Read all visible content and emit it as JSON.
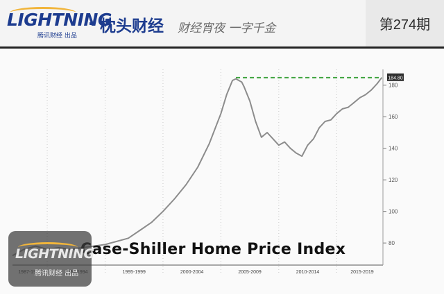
{
  "header": {
    "brand_logo": "LIGHTNING",
    "brand_sub": "腾讯财经 出品",
    "brand_dot": "·",
    "brand_cn": "枕头财经",
    "slogan": "财经宵夜 一字千金",
    "issue": "第274期"
  },
  "watermark": {
    "logo": "LIGHTNING",
    "sub": "腾讯财经 出品"
  },
  "colors": {
    "brand_blue": "#1d3c8f",
    "accent_yellow": "#f1b53b",
    "line": "#8c8c8c",
    "dashed_level": "#3ea33e"
  },
  "chart_data": {
    "type": "line",
    "title": "Case-Shiller Home Price Index",
    "xlabel": "",
    "ylabel": "",
    "x_tick_labels": [
      "1987-1989",
      "1990-1994",
      "1995-1999",
      "2000-2004",
      "2005-2009",
      "2010-2014",
      "2015-2019"
    ],
    "y_ticks": [
      80,
      100,
      120,
      140,
      160,
      180
    ],
    "ylim": [
      66,
      190
    ],
    "xlim": [
      1987,
      2019
    ],
    "grid": "vertical dotted",
    "latest_label": "184.80",
    "dashed_level_y": 184.8,
    "dashed_level_x_range": [
      2006.3,
      2018.9
    ],
    "series": [
      {
        "x": [
          1987,
          1988,
          1989,
          1990,
          1991,
          1992,
          1993,
          1994,
          1995,
          1996,
          1997,
          1998,
          1999,
          2000,
          2001,
          2002,
          2003,
          2004,
          2005,
          2005.5,
          2006,
          2006.3,
          2006.8,
          2007,
          2007.5,
          2008,
          2008.5,
          2009,
          2009.5,
          2010,
          2010.5,
          2011,
          2011.5,
          2012,
          2012.5,
          2013,
          2013.5,
          2014,
          2014.5,
          2015,
          2015.5,
          2016,
          2016.5,
          2017,
          2017.5,
          2018,
          2018.5,
          2018.9
        ],
        "values": [
          72,
          76,
          78,
          76,
          77,
          76,
          77,
          78,
          79,
          81,
          83,
          88,
          93,
          100,
          108,
          117,
          128,
          143,
          162,
          174,
          183,
          184,
          182,
          179,
          170,
          157,
          147,
          150,
          146,
          142,
          144,
          140,
          137,
          135,
          142,
          146,
          153,
          157,
          158,
          162,
          165,
          166,
          169,
          172,
          174,
          177,
          181,
          184.8
        ]
      }
    ]
  }
}
